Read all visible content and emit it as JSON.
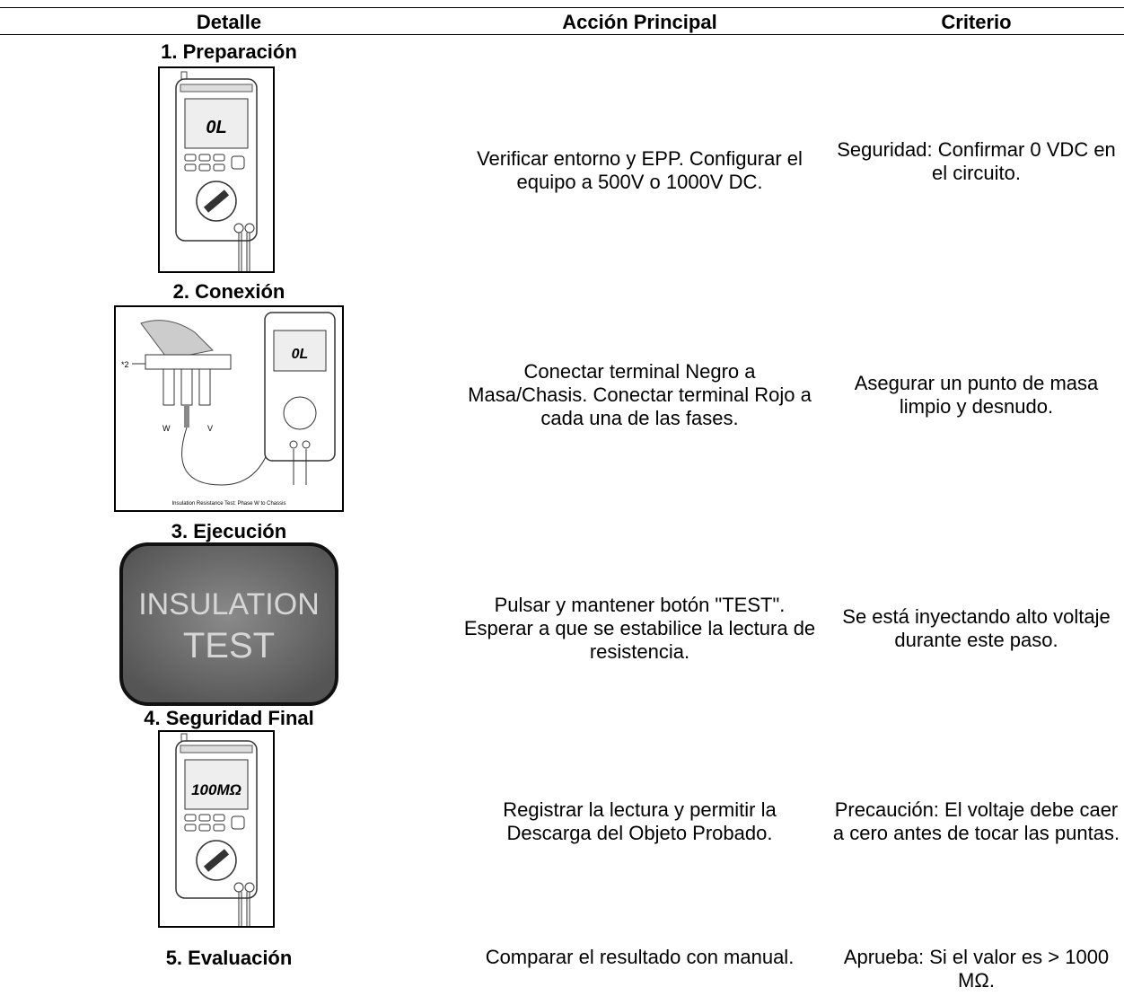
{
  "table": {
    "columns": [
      "Detalle",
      "Acción Principal",
      "Criterio"
    ],
    "rows": [
      {
        "title": "1. Preparación",
        "action": "Verificar entorno y EPP. Configurar el equipo a 500V o 1000V DC.",
        "criterion": "Seguridad: Confirmar 0 VDC en el circuito.",
        "display": "0L"
      },
      {
        "title": "2. Conexión",
        "action": "Conectar terminal Negro a Masa/Chasis. Conectar terminal Rojo a cada una de las fases.",
        "criterion": "Asegurar un punto de masa limpio y desnudo.",
        "display": "0L",
        "labels": [
          "*2",
          "W",
          "V"
        ],
        "caption": "Insulation Resistance Test: Phase W to Chassis"
      },
      {
        "title": "3. Ejecución",
        "action": "Pulsar y mantener botón \"TEST\". Esperar a que se estabilice la lectura de resistencia.",
        "criterion": "Se está inyectando alto voltaje durante este paso.",
        "button": [
          "INSULATION",
          "TEST"
        ]
      },
      {
        "title": "4. Seguridad Final",
        "action": "Registrar la lectura y permitir la Descarga del Objeto Probado.",
        "criterion": "Precaución: El voltaje debe caer a cero antes de tocar las puntas.",
        "display": "100MΩ"
      },
      {
        "title": "5. Evaluación",
        "action": "Comparar el resultado con manual.",
        "criterion": "Aprueba: Si el valor es > 1000 MΩ."
      }
    ]
  }
}
